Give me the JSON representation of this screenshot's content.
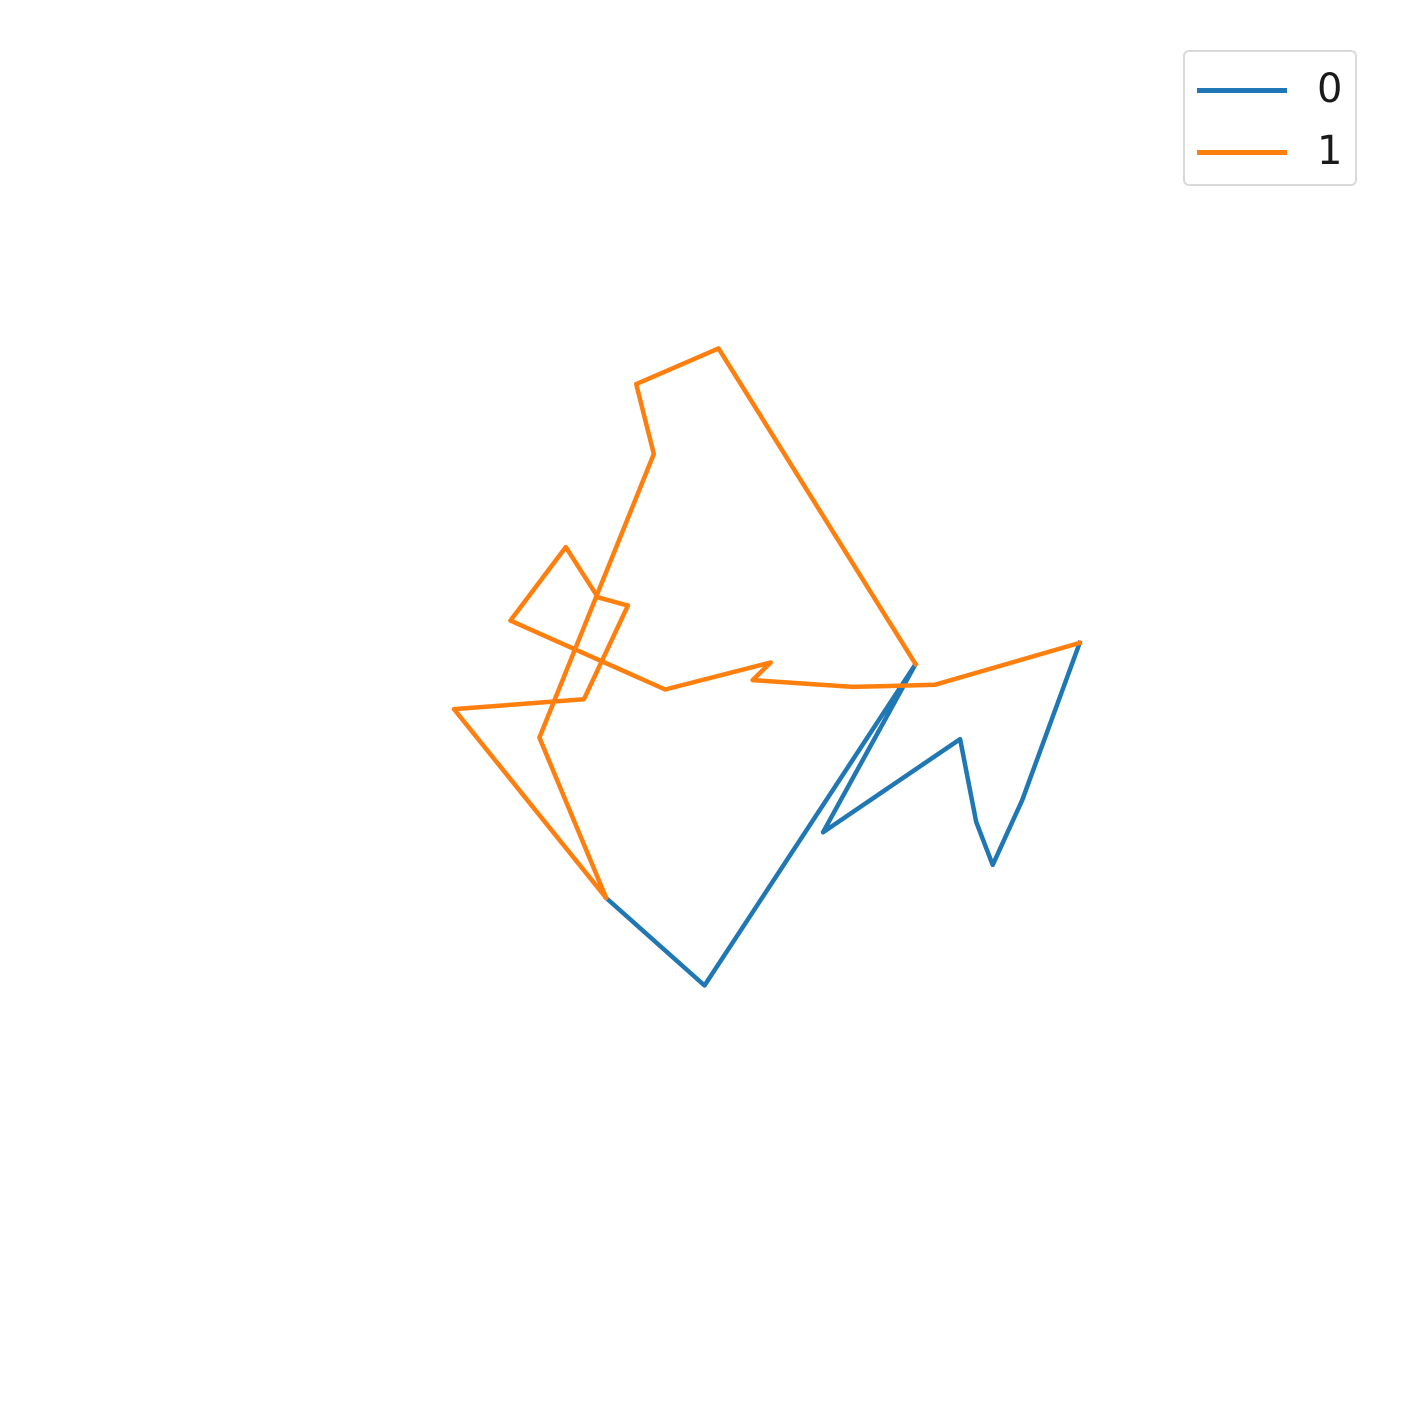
{
  "chart_data": {
    "type": "line",
    "title": "",
    "xlabel": "",
    "ylabel": "",
    "axes_visible": false,
    "grid": false,
    "legend_position": "top-right",
    "xlim": [
      -1,
      1
    ],
    "ylim": [
      -1,
      1
    ],
    "series": [
      {
        "name": "0",
        "color": "#1f77b4",
        "points": [
          [
            -0.19,
            -0.372
          ],
          [
            0.0,
            -0.541
          ],
          [
            0.408,
            0.08
          ],
          [
            0.229,
            -0.245
          ],
          [
            0.494,
            -0.065
          ],
          [
            0.525,
            -0.225
          ],
          [
            0.557,
            -0.308
          ],
          [
            0.614,
            -0.183
          ],
          [
            0.725,
            0.121
          ]
        ]
      },
      {
        "name": "1",
        "color": "#ff7f0e",
        "points": [
          [
            0.725,
            0.121
          ],
          [
            0.445,
            0.04
          ],
          [
            0.286,
            0.036
          ],
          [
            0.093,
            0.049
          ],
          [
            0.128,
            0.083
          ],
          [
            -0.076,
            0.031
          ],
          [
            -0.375,
            0.164
          ],
          [
            -0.268,
            0.306
          ],
          [
            -0.206,
            0.209
          ],
          [
            -0.148,
            0.193
          ],
          [
            -0.233,
            0.012
          ],
          [
            -0.484,
            -0.007
          ],
          [
            -0.19,
            -0.372
          ],
          [
            -0.319,
            -0.062
          ],
          [
            -0.098,
            0.486
          ],
          [
            -0.132,
            0.621
          ],
          [
            0.027,
            0.69
          ],
          [
            0.408,
            0.08
          ]
        ]
      }
    ]
  }
}
